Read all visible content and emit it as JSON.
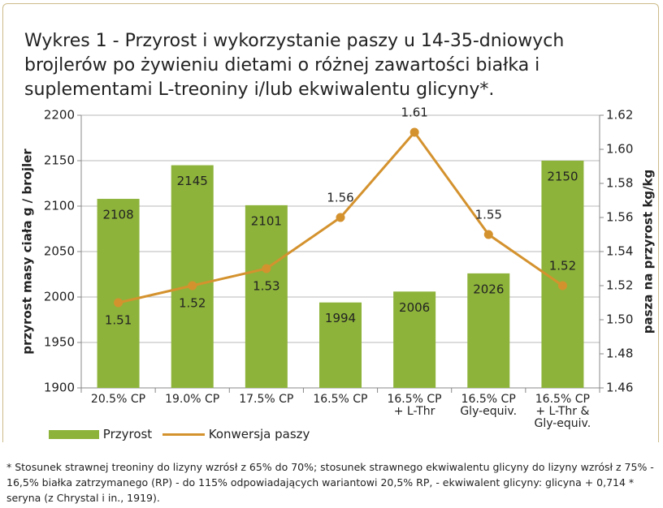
{
  "chart_data": {
    "type": "bar_line",
    "title": "Wykres 1 - Przyrost i wykorzystanie paszy u 14-35-dniowych brojlerów po żywieniu dietami o różnej zawartości białka i suplementami L-treoniny i/lub ekwiwalentu glicyny*.",
    "categories": [
      "20.5% CP",
      "19.0% CP",
      "17.5% CP",
      "16.5% CP",
      "16.5% CP\n+ L-Thr",
      "16.5% CP\nGly-equiv.",
      "16.5% CP\n+ L-Thr &\nGly-equiv."
    ],
    "series": [
      {
        "name": "Przyrost",
        "color": "#8db33a",
        "values": [
          2108,
          2145,
          2101,
          1994,
          2006,
          2026,
          2150
        ]
      },
      {
        "name": "Konwersja paszy",
        "color": "#d4922e",
        "axis": "y2",
        "values": [
          1.51,
          1.52,
          1.53,
          1.56,
          1.61,
          1.55,
          1.52
        ]
      }
    ],
    "ylabel": "przyrost masy ciała g / brojler",
    "y2label": "pasza na przyrost kg/kg",
    "ylim": [
      1900,
      2200
    ],
    "yticks": [
      1900,
      1950,
      2000,
      2050,
      2100,
      2150,
      2200
    ],
    "y2lim": [
      1.46,
      1.62
    ],
    "y2ticks": [
      1.46,
      1.48,
      {
        "value": 1.5,
        "label": "1.50"
      },
      1.52,
      1.54,
      1.56,
      1.58,
      {
        "value": 1.6,
        "label": "1.60"
      },
      1.62
    ],
    "grid": true,
    "footnote": "* Stosunek strawnej treoniny do lizyny wzrósł z 65% do 70%; stosunek strawnego ekwiwalentu glicyny do lizyny wzrósł z 75% - 16,5% białka zatrzymanego (RP) - do 115% odpowiadających wariantowi 20,5% RP, - ekwiwalent glicyny: glicyna + 0,714 * seryna (z Chrystal i in., 1919)."
  }
}
